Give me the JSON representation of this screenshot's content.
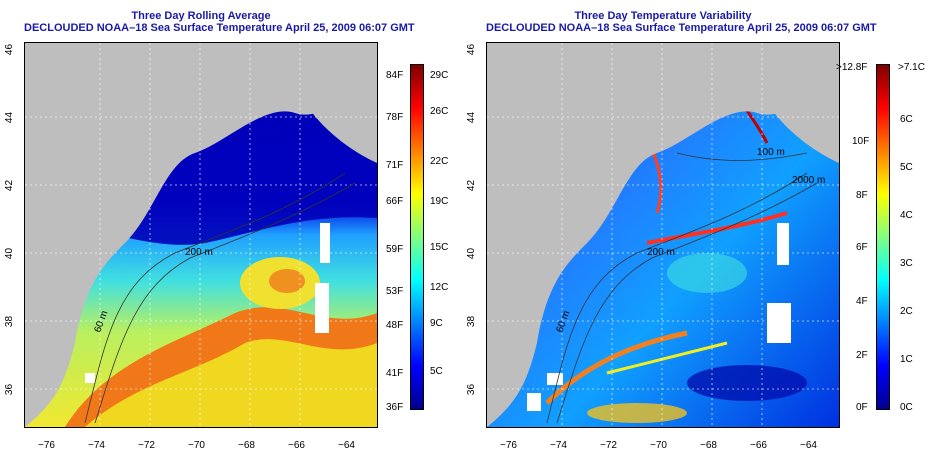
{
  "left_panel": {
    "title_line1": "Three Day Rolling Average",
    "title_line2": "DECLOUDED NOAA–18 Sea Surface Temperature April 25, 2009 06:07 GMT",
    "y_ticks": [
      "46",
      "44",
      "42",
      "40",
      "38",
      "36"
    ],
    "x_ticks": [
      "−76",
      "−74",
      "−72",
      "−70",
      "−68",
      "−66",
      "−64"
    ],
    "colorbar_f": [
      "84F",
      "78F",
      "71F",
      "66F",
      "59F",
      "53F",
      "48F",
      "41F",
      "36F"
    ],
    "colorbar_c": [
      "29C",
      "26C",
      "22C",
      "19C",
      "15C",
      "12C",
      "9C",
      "5C"
    ],
    "depth_labels": [
      "60 m",
      "200 m"
    ]
  },
  "right_panel": {
    "title_line1": "Three Day Temperature Variability",
    "title_line2": "DECLOUDED NOAA–18 Sea Surface Temperature April 25, 2009 06:07 GMT",
    "y_ticks": [
      "46",
      "44",
      "42",
      "40",
      "38",
      "36"
    ],
    "x_ticks": [
      "−76",
      "−74",
      "−72",
      "−70",
      "−68",
      "−66",
      "−64"
    ],
    "colorbar_f": [
      ">12.8F",
      "10F",
      "8F",
      "6F",
      "4F",
      "2F",
      "0F"
    ],
    "colorbar_c": [
      ">7.1C",
      "6C",
      "5C",
      "4C",
      "3C",
      "2C",
      "1C",
      "0C"
    ],
    "depth_labels": [
      "60 m",
      "200 m",
      "100 m",
      "2000 m"
    ]
  },
  "colors": {
    "title": "#1a1aa6",
    "land": "#bebebe",
    "jet": [
      "#00008f",
      "#0000ff",
      "#0080ff",
      "#00ffff",
      "#80ff80",
      "#ffff00",
      "#ff8000",
      "#ff0000",
      "#800000"
    ]
  }
}
